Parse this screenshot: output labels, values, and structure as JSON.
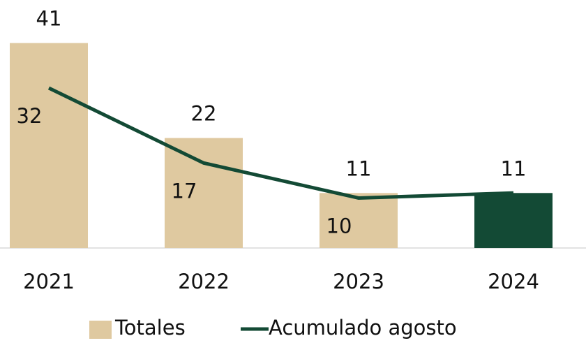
{
  "chart_data": {
    "type": "bar-line",
    "categories": [
      "2021",
      "2022",
      "2023",
      "2024"
    ],
    "series": [
      {
        "name": "Totales",
        "type": "bar",
        "color": "#dfc9a0",
        "colors": [
          "#dfc9a0",
          "#dfc9a0",
          "#dfc9a0",
          "#134a35"
        ],
        "values": [
          41,
          22,
          11,
          11
        ]
      },
      {
        "name": "Acumulado agosto",
        "type": "line",
        "color": "#134a35",
        "values": [
          32,
          17,
          10,
          11
        ],
        "value_labels": [
          32,
          17,
          10,
          null
        ]
      }
    ],
    "ylim": [
      0,
      45
    ]
  }
}
